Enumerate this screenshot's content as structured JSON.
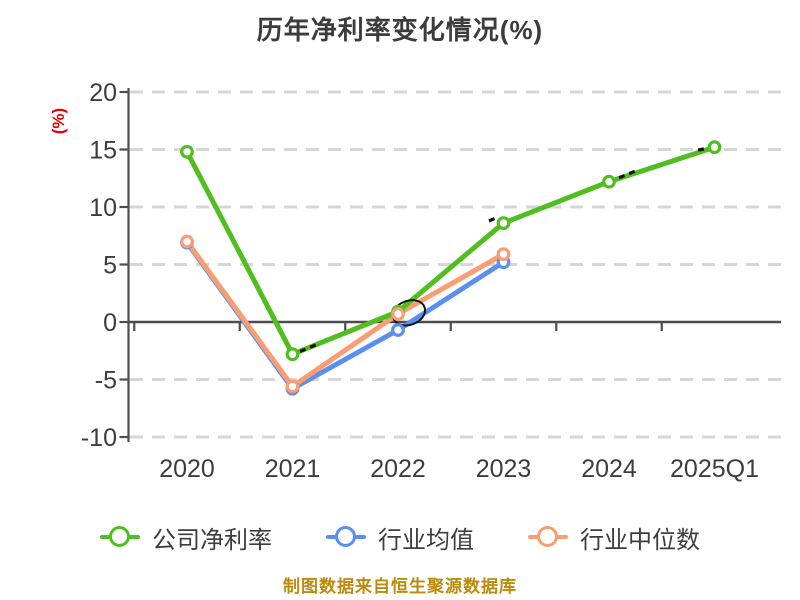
{
  "title": "历年净利率变化情况(%)",
  "caption": "制图数据来自恒生聚源数据库",
  "chart_data": {
    "type": "line",
    "title": "历年净利率变化情况(%)",
    "ylabel": "(%)",
    "xlabel": "",
    "categories": [
      "2020",
      "2021",
      "2022",
      "2023",
      "2024",
      "2025Q1"
    ],
    "ylim": [
      -10,
      20
    ],
    "yticks": [
      20,
      15,
      10,
      5,
      0,
      -5,
      -10
    ],
    "grid": "horizontal-dashed",
    "legend_position": "bottom",
    "series": [
      {
        "name": "公司净利率",
        "color": "#50be1e",
        "values": [
          14.8,
          -2.8,
          0.9,
          8.6,
          12.2,
          15.2
        ]
      },
      {
        "name": "行业均值",
        "color": "#5a8ff0",
        "values": [
          6.9,
          -5.8,
          -0.7,
          5.2,
          null,
          null
        ]
      },
      {
        "name": "行业中位数",
        "color": "#fa9d73",
        "values": [
          7.0,
          -5.6,
          0.7,
          5.9,
          null,
          null
        ]
      }
    ],
    "annotations": [
      {
        "type": "ellipse",
        "category": "2022",
        "value": 0.8
      }
    ]
  },
  "colors": {
    "axis": "#4d4d4d",
    "grid": "#d6d6d6",
    "tick_label": "#3d3d3d",
    "y_unit_label": "#e60000",
    "caption": "#bd8b0b",
    "annotation": "#141414",
    "background": "#ffffff"
  }
}
